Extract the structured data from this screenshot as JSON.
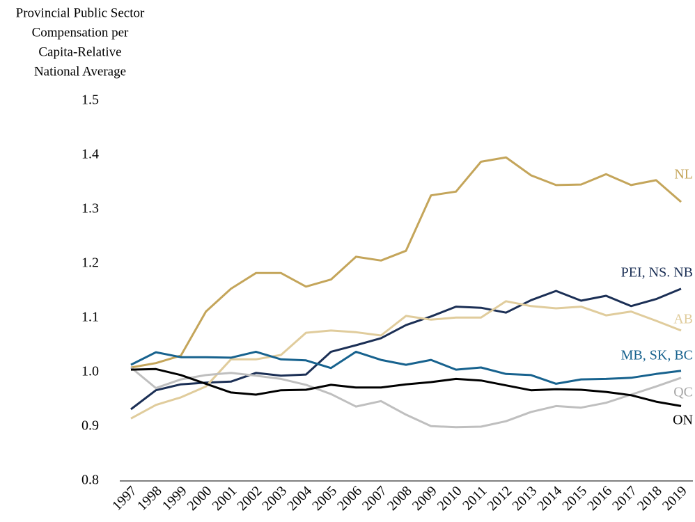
{
  "chart_data": {
    "type": "line",
    "title": [
      "Provincial Public Sector",
      "Compensation per",
      "Capita-Relative",
      "National Average"
    ],
    "categories": [
      "1997",
      "1998",
      "1999",
      "2000",
      "2001",
      "2002",
      "2003",
      "2004",
      "2005",
      "2006",
      "2007",
      "2008",
      "2009",
      "2010",
      "2011",
      "2012",
      "2013",
      "2014",
      "2015",
      "2016",
      "2017",
      "2018",
      "2019"
    ],
    "ylim": [
      0.8,
      1.5
    ],
    "yticks": [
      0.8,
      0.9,
      {
        "value": 1.0,
        "label": "1.0"
      },
      1.1,
      1.2,
      1.3,
      1.4,
      1.5
    ],
    "grid": false,
    "series": [
      {
        "name": "NL",
        "color": "#c4a55a",
        "values": [
          1.009,
          1.017,
          1.031,
          1.112,
          1.154,
          1.183,
          1.183,
          1.158,
          1.171,
          1.213,
          1.206,
          1.224,
          1.326,
          1.333,
          1.388,
          1.396,
          1.363,
          1.345,
          1.346,
          1.365,
          1.345,
          1.354,
          1.314
        ]
      },
      {
        "name": "PEI, NS. NB",
        "color": "#1b2f55",
        "values": [
          0.932,
          0.967,
          0.978,
          0.981,
          0.983,
          0.999,
          0.994,
          0.996,
          1.038,
          1.05,
          1.063,
          1.087,
          1.103,
          1.121,
          1.119,
          1.11,
          1.133,
          1.15,
          1.132,
          1.141,
          1.122,
          1.135,
          1.154
        ]
      },
      {
        "name": "AB",
        "color": "#e0cc9c",
        "values": [
          0.915,
          0.94,
          0.954,
          0.974,
          1.024,
          1.024,
          1.032,
          1.073,
          1.077,
          1.074,
          1.068,
          1.104,
          1.097,
          1.101,
          1.101,
          1.131,
          1.122,
          1.118,
          1.121,
          1.105,
          1.112,
          1.095,
          1.077
        ]
      },
      {
        "name": "MB, SK, BC",
        "color": "#17628e",
        "values": [
          1.014,
          1.037,
          1.028,
          1.028,
          1.027,
          1.038,
          1.024,
          1.022,
          1.008,
          1.038,
          1.023,
          1.014,
          1.023,
          1.005,
          1.009,
          0.997,
          0.995,
          0.979,
          0.987,
          0.988,
          0.99,
          0.997,
          1.003
        ]
      },
      {
        "name": "QC",
        "color": "#bfbfbf",
        "values": [
          1.009,
          0.971,
          0.987,
          0.995,
          0.999,
          0.994,
          0.988,
          0.977,
          0.96,
          0.937,
          0.947,
          0.922,
          0.901,
          0.899,
          0.9,
          0.91,
          0.927,
          0.938,
          0.935,
          0.944,
          0.959,
          0.974,
          0.99
        ]
      },
      {
        "name": "ON",
        "color": "#000000",
        "values": [
          1.005,
          1.006,
          0.995,
          0.979,
          0.963,
          0.959,
          0.967,
          0.968,
          0.977,
          0.972,
          0.972,
          0.978,
          0.982,
          0.988,
          0.985,
          0.976,
          0.967,
          0.969,
          0.968,
          0.964,
          0.958,
          0.946,
          0.938
        ]
      }
    ]
  }
}
